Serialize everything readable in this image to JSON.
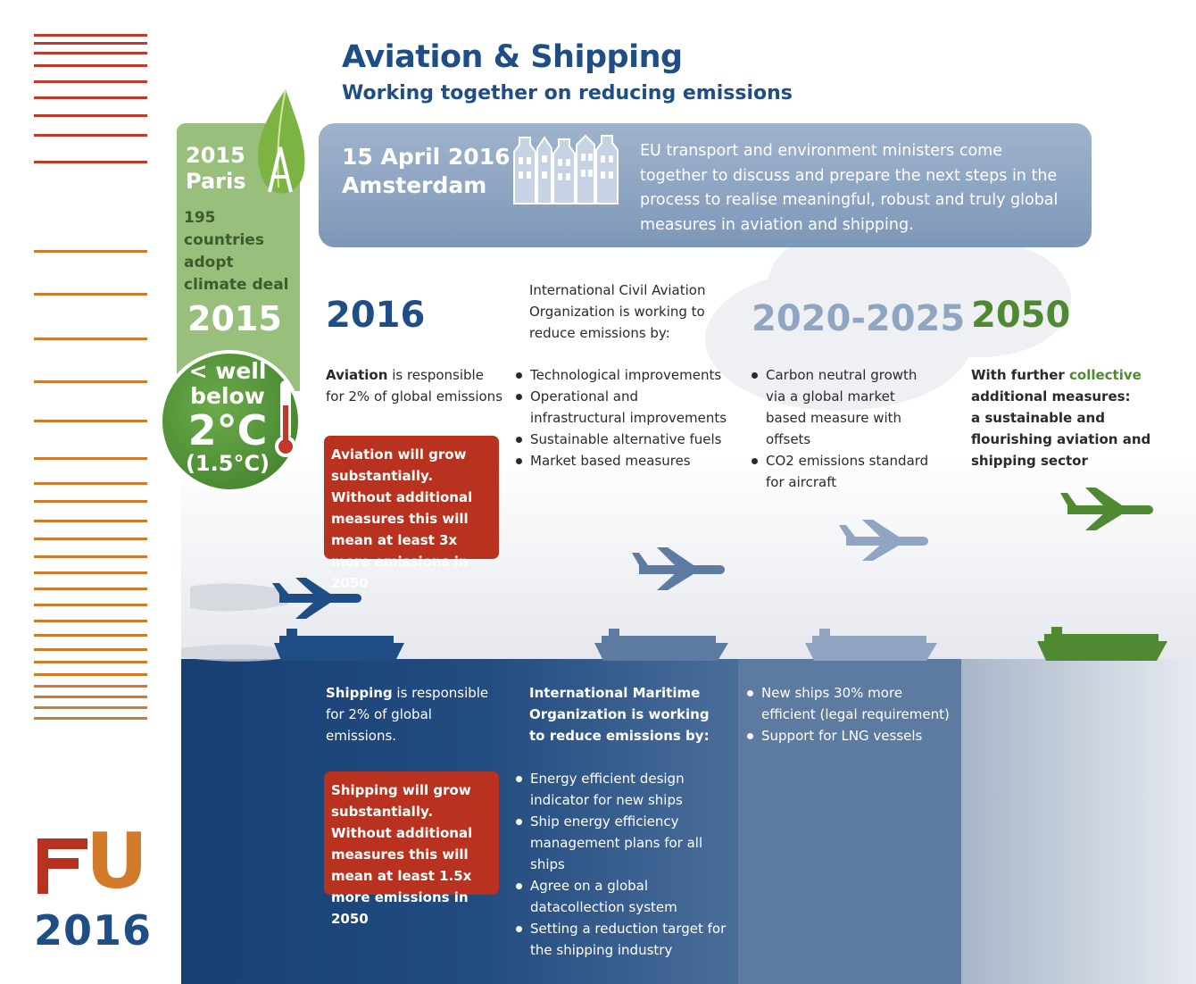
{
  "header": {
    "title": "Aviation & Shipping",
    "subtitle": "Working together on reducing emissions"
  },
  "paris": {
    "year_label": "2015",
    "city": "Paris",
    "text_lines": [
      "195",
      "countries",
      "adopt",
      "climate deal"
    ],
    "year_big": "2015",
    "target_line1": "< well",
    "target_line2": "below",
    "target_line3": "2°C",
    "target_line4": "(1.5°C)"
  },
  "amsterdam": {
    "date": "15 April 2016",
    "city": "Amsterdam",
    "text": "EU transport and environment ministers come together to discuss and prepare the next steps in the process to realise meaningful, robust and truly global measures in aviation and shipping."
  },
  "years": {
    "y2016": "2016",
    "y2020": "2020-2025",
    "y2050": "2050"
  },
  "aviation": {
    "bold": "Aviation",
    "rest": " is responsible for 2% of global emissions",
    "warning": "Aviation will grow substantially. Without additional measures this will mean at least 3x more emissions in 2050"
  },
  "icao": {
    "intro": "International Civil Aviation Organization is working to reduce emissions by:",
    "items": [
      "Technological improvements",
      "Operational and infrastructural improvements",
      "Sustainable alternative fuels",
      "Market based measures"
    ]
  },
  "aviation_2020": {
    "items": [
      "Carbon neutral growth via a global market based measure with offsets",
      "CO2 emissions standard for aircraft"
    ]
  },
  "future_2050": {
    "part1": "With further ",
    "highlight": "collective",
    "part2": " additional measures:",
    "bold_line": "a sustainable and flourishing aviation and shipping sector"
  },
  "shipping": {
    "bold": "Shipping",
    "rest": " is responsible for 2% of global emissions.",
    "warning": "Shipping will grow substantially. Without additional measures this will mean at least 1.5x more emissions in 2050"
  },
  "imo": {
    "intro": "International Maritime Organization is working to reduce emissions by:",
    "items": [
      "Energy efficient design indicator for new ships",
      "Ship energy efficiency management plans for all ships",
      "Agree on a global datacollection system",
      "Setting a reduction target for the shipping industry"
    ]
  },
  "shipping_2020": {
    "items": [
      "New ships 30% more efficient (legal requirement)",
      "Support for LNG vessels"
    ]
  },
  "logo": {
    "letter": "U",
    "year": "2016"
  },
  "colors": {
    "navy": "#1f4e86",
    "red": "#b8321f",
    "green": "#4f8a33",
    "steel": "#8fa5c2"
  }
}
